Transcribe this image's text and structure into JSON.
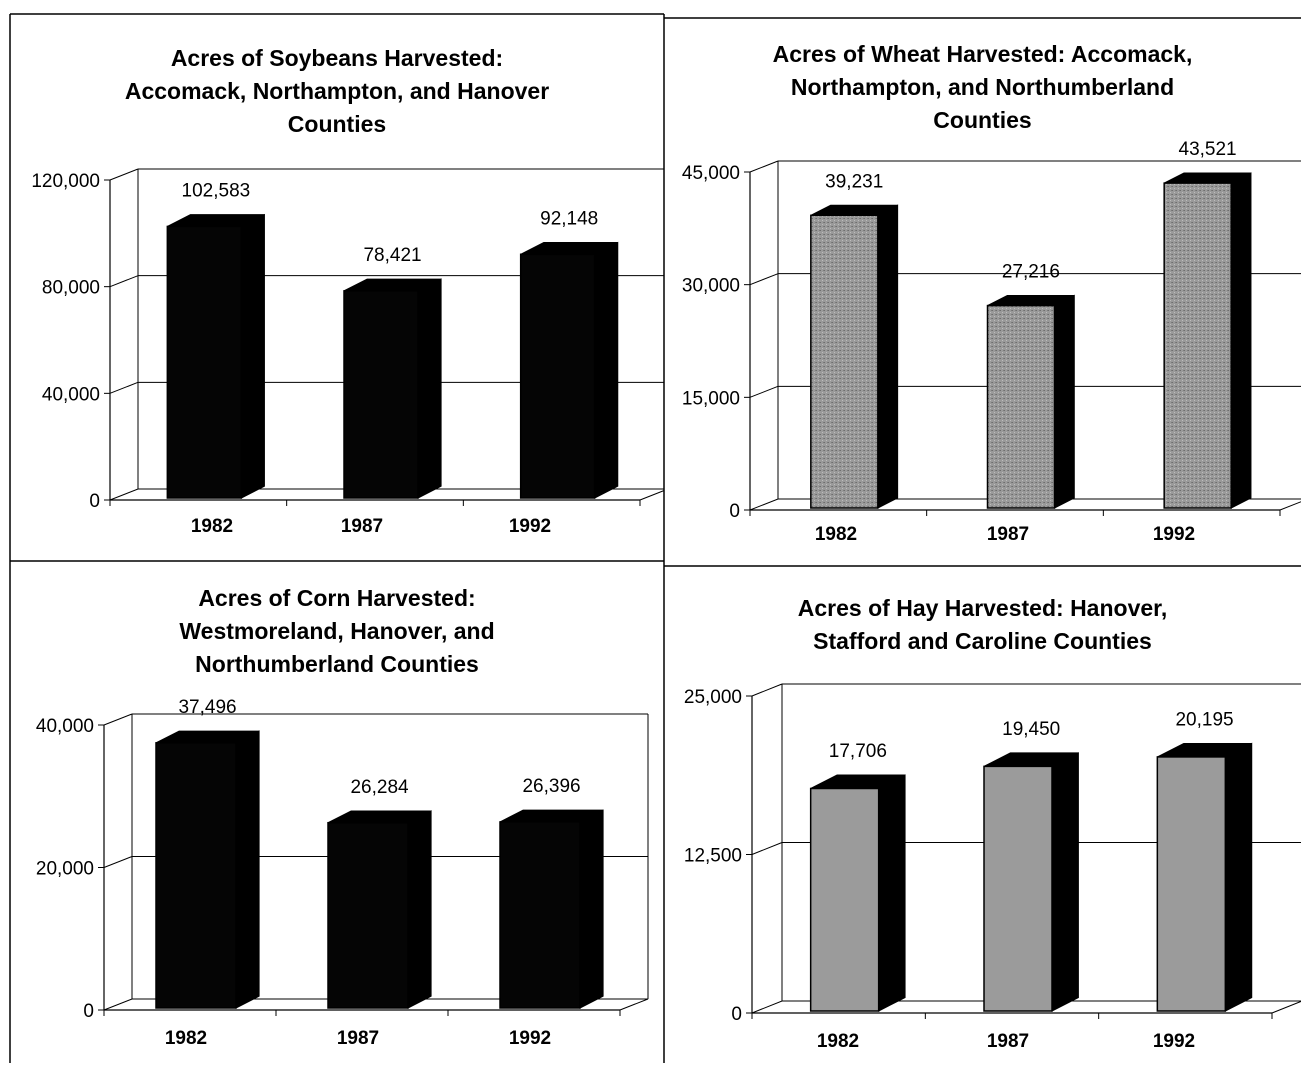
{
  "charts": [
    {
      "title_lines": [
        "Acres of Soybeans Harvested:",
        "Accomack, Northampton, and Hanover",
        "Counties"
      ],
      "fill": "solid",
      "chart_data": {
        "type": "bar",
        "title": "Acres of Soybeans Harvested: Accomack, Northampton, and Hanover Counties",
        "categories": [
          "1982",
          "1987",
          "1992"
        ],
        "values": [
          102583,
          78421,
          92148
        ],
        "value_labels": [
          "102,583",
          "78,421",
          "92,148"
        ],
        "yticks": [
          0,
          40000,
          80000,
          120000
        ],
        "ytick_labels": [
          "0",
          "40,000",
          "80,000",
          "120,000"
        ],
        "ylim": [
          0,
          120000
        ],
        "grid": true
      }
    },
    {
      "title_lines": [
        "Acres of Wheat Harvested: Accomack,",
        "Northampton, and Northumberland",
        "Counties"
      ],
      "fill": "gray",
      "chart_data": {
        "type": "bar",
        "title": "Acres of Wheat Harvested: Accomack, Northampton, and Northumberland Counties",
        "categories": [
          "1982",
          "1987",
          "1992"
        ],
        "values": [
          39231,
          27216,
          43521
        ],
        "value_labels": [
          "39,231",
          "27,216",
          "43,521"
        ],
        "yticks": [
          0,
          15000,
          30000,
          45000
        ],
        "ytick_labels": [
          "0",
          "15,000",
          "30,000",
          "45,000"
        ],
        "ylim": [
          0,
          45000
        ],
        "grid": true
      }
    },
    {
      "title_lines": [
        "Acres of Corn Harvested:",
        "Westmoreland, Hanover, and",
        "Northumberland Counties"
      ],
      "fill": "solid",
      "chart_data": {
        "type": "bar",
        "title": "Acres of Corn Harvested: Westmoreland, Hanover, and Northumberland Counties",
        "categories": [
          "1982",
          "1987",
          "1992"
        ],
        "values": [
          37496,
          26284,
          26396
        ],
        "value_labels": [
          "37,496",
          "26,284",
          "26,396"
        ],
        "yticks": [
          0,
          20000,
          40000
        ],
        "ytick_labels": [
          "0",
          "20,000",
          "40,000"
        ],
        "ylim": [
          0,
          40000
        ],
        "grid": true
      }
    },
    {
      "title_lines": [
        "Acres of Hay Harvested: Hanover,",
        "Stafford and Caroline Counties"
      ],
      "fill": "gray",
      "chart_data": {
        "type": "bar",
        "title": "Acres of Hay Harvested: Hanover, Stafford and Caroline Counties",
        "categories": [
          "1982",
          "1987",
          "1992"
        ],
        "values": [
          17706,
          19450,
          20195
        ],
        "value_labels": [
          "17,706",
          "19,450",
          "20,195"
        ],
        "yticks": [
          0,
          12500,
          25000
        ],
        "ytick_labels": [
          "0",
          "12,500",
          "25,000"
        ],
        "ylim": [
          0,
          25000
        ],
        "grid": true
      }
    }
  ]
}
